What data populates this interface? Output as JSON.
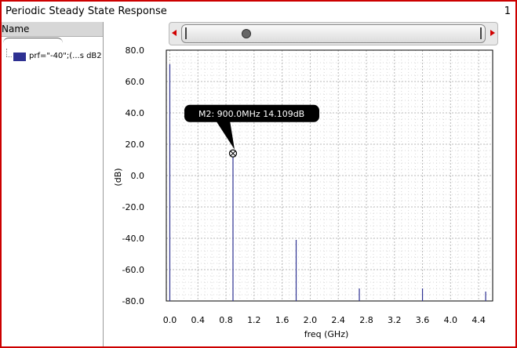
{
  "window": {
    "title": "Periodic Steady State Response",
    "number": "1"
  },
  "left_panel": {
    "header": "Name",
    "series_label": "prf=\"-40\";(...s dB2",
    "series_color": "#2e3192"
  },
  "scroller": {
    "left_arrow_icon": "scroll-left-arrow-icon",
    "right_arrow_icon": "scroll-right-arrow-icon",
    "grip_icon": "grip-icon"
  },
  "marker": {
    "label": "M2: 900.0MHz 14.109dB",
    "x": 0.9,
    "y": 14.109
  },
  "chart_data": {
    "type": "line",
    "xlabel": "freq (GHz)",
    "ylabel": "(dB)",
    "xlim": [
      -0.05,
      4.6
    ],
    "ylim": [
      -80,
      80
    ],
    "x_ticks": [
      "0.0",
      "0.4",
      "0.8",
      "1.2",
      "1.6",
      "2.0",
      "2.4",
      "2.8",
      "3.2",
      "3.6",
      "4.0",
      "4.4"
    ],
    "y_ticks": [
      "80.0",
      "60.0",
      "40.0",
      "20.0",
      "0.0",
      "-20.0",
      "-40.0",
      "-60.0",
      "-80.0"
    ],
    "grid": true,
    "series": [
      {
        "name": "prf=\"-40\";(...s dB2",
        "color": "#2e3192",
        "x": [
          0.0,
          0.9,
          1.8,
          2.7,
          3.6,
          4.5
        ],
        "y": [
          71,
          14.109,
          -41,
          -72,
          -72,
          -74
        ]
      }
    ]
  }
}
